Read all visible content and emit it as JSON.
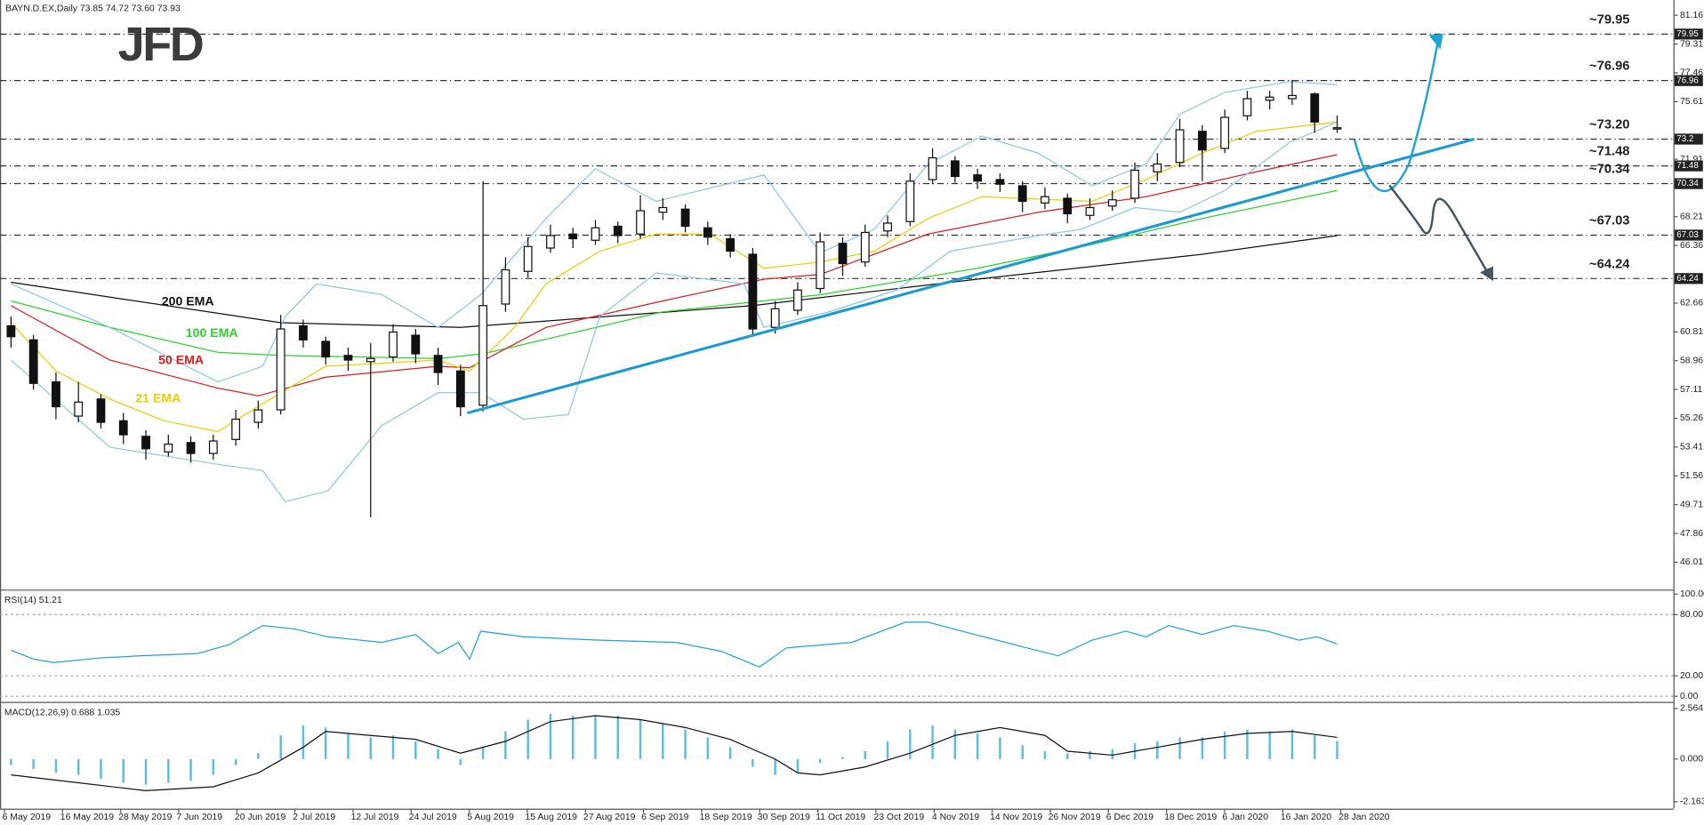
{
  "chart_data": [
    {
      "type": "candlestick",
      "title": "BAYN.D.EX,Daily  73.85 74.72 73.60 73.93",
      "logo": "JFD",
      "xlim": [
        -0.49,
        73.96
      ],
      "ylim": [
        44.25,
        82.14
      ],
      "yticks": [
        81.16,
        79.31,
        77.46,
        75.61,
        71.91,
        68.21,
        66.36,
        62.66,
        60.81,
        58.96,
        57.11,
        55.26,
        53.41,
        51.56,
        49.71,
        47.86,
        46.01
      ],
      "xticks": [
        {
          "value": -0.29,
          "label": "6 May 2019"
        },
        {
          "value": 2.29,
          "label": "16 May 2019"
        },
        {
          "value": 4.88,
          "label": "28 May 2019"
        },
        {
          "value": 7.46,
          "label": "7 Jun 2019"
        },
        {
          "value": 10.05,
          "label": "20 Jun 2019"
        },
        {
          "value": 12.63,
          "label": "2 Jul 2019"
        },
        {
          "value": 15.22,
          "label": "12 Jul 2019"
        },
        {
          "value": 17.8,
          "label": "24 Jul 2019"
        },
        {
          "value": 20.39,
          "label": "5 Aug 2019"
        },
        {
          "value": 22.97,
          "label": "15 Aug 2019"
        },
        {
          "value": 25.56,
          "label": "27 Aug 2019"
        },
        {
          "value": 28.14,
          "label": "6 Sep 2019"
        },
        {
          "value": 30.73,
          "label": "18 Sep 2019"
        },
        {
          "value": 33.31,
          "label": "30 Sep 2019"
        },
        {
          "value": 35.9,
          "label": "11 Oct 2019"
        },
        {
          "value": 38.48,
          "label": "23 Oct 2019"
        },
        {
          "value": 41.07,
          "label": "4 Nov 2019"
        },
        {
          "value": 43.65,
          "label": "14 Nov 2019"
        },
        {
          "value": 46.24,
          "label": "26 Nov 2019"
        },
        {
          "value": 48.82,
          "label": "6 Dec 2019"
        },
        {
          "value": 51.41,
          "label": "18 Dec 2019"
        },
        {
          "value": 53.99,
          "label": "6 Jan 2020"
        },
        {
          "value": 56.58,
          "label": "16 Jan 2020"
        },
        {
          "value": 59.16,
          "label": "28 Jan 2020"
        }
      ],
      "ohlc": [
        [
          61.2,
          61.8,
          59.8,
          60.5
        ],
        [
          60.3,
          60.6,
          57.1,
          57.5
        ],
        [
          57.6,
          58.2,
          55.2,
          56.0
        ],
        [
          55.4,
          57.6,
          55.0,
          56.3
        ],
        [
          56.5,
          56.8,
          54.6,
          55.0
        ],
        [
          55.1,
          55.6,
          53.6,
          54.2
        ],
        [
          54.1,
          54.5,
          52.6,
          53.3
        ],
        [
          53.1,
          54.2,
          52.8,
          53.6
        ],
        [
          53.7,
          54.1,
          52.4,
          53.0
        ],
        [
          53.0,
          54.2,
          52.6,
          53.8
        ],
        [
          53.9,
          55.8,
          53.5,
          55.2
        ],
        [
          55.0,
          56.4,
          54.6,
          55.8
        ],
        [
          55.8,
          61.9,
          55.5,
          61.0
        ],
        [
          61.2,
          61.6,
          59.8,
          60.3
        ],
        [
          60.2,
          60.5,
          58.7,
          59.2
        ],
        [
          59.3,
          59.8,
          58.3,
          59.0
        ],
        [
          58.9,
          60.1,
          48.9,
          59.1
        ],
        [
          59.2,
          61.3,
          58.9,
          60.8
        ],
        [
          60.6,
          61.0,
          58.8,
          59.4
        ],
        [
          59.3,
          59.8,
          57.4,
          58.2
        ],
        [
          58.3,
          58.7,
          55.4,
          56.0
        ],
        [
          56.1,
          70.5,
          55.7,
          62.5
        ],
        [
          62.6,
          65.6,
          62.1,
          64.8
        ],
        [
          64.7,
          66.9,
          64.3,
          66.3
        ],
        [
          66.2,
          67.7,
          65.9,
          67.0
        ],
        [
          67.1,
          67.5,
          66.2,
          66.8
        ],
        [
          66.7,
          68.0,
          66.4,
          67.5
        ],
        [
          67.6,
          67.9,
          66.5,
          67.0
        ],
        [
          67.1,
          69.6,
          66.8,
          68.6
        ],
        [
          68.5,
          69.4,
          68.0,
          68.8
        ],
        [
          68.7,
          69.0,
          67.2,
          67.6
        ],
        [
          67.5,
          67.9,
          66.4,
          66.9
        ],
        [
          66.8,
          67.1,
          65.6,
          66.0
        ],
        [
          65.8,
          66.2,
          60.6,
          61.0
        ],
        [
          61.1,
          62.8,
          60.7,
          62.3
        ],
        [
          62.2,
          64.0,
          61.9,
          63.5
        ],
        [
          63.6,
          67.2,
          63.3,
          66.6
        ],
        [
          66.5,
          66.9,
          64.4,
          65.2
        ],
        [
          65.3,
          67.7,
          65.0,
          67.2
        ],
        [
          67.3,
          68.3,
          66.9,
          67.8
        ],
        [
          67.9,
          71.0,
          67.6,
          70.5
        ],
        [
          70.6,
          72.6,
          70.3,
          72.0
        ],
        [
          71.8,
          72.1,
          70.4,
          70.8
        ],
        [
          70.9,
          71.3,
          70.0,
          70.5
        ],
        [
          70.6,
          71.0,
          69.8,
          70.3
        ],
        [
          70.2,
          70.5,
          68.5,
          69.2
        ],
        [
          69.1,
          70.1,
          68.7,
          69.5
        ],
        [
          69.4,
          69.7,
          67.8,
          68.4
        ],
        [
          68.3,
          69.4,
          68.0,
          68.8
        ],
        [
          68.9,
          69.9,
          68.6,
          69.3
        ],
        [
          69.4,
          71.7,
          69.1,
          71.2
        ],
        [
          71.1,
          72.3,
          70.5,
          71.6
        ],
        [
          71.7,
          74.5,
          71.4,
          73.8
        ],
        [
          73.7,
          74.1,
          70.5,
          72.5
        ],
        [
          72.6,
          75.1,
          72.3,
          74.6
        ],
        [
          74.7,
          76.3,
          74.4,
          75.8
        ],
        [
          75.7,
          76.3,
          75.1,
          75.9
        ],
        [
          75.8,
          77.0,
          75.4,
          76.0
        ],
        [
          76.1,
          76.2,
          73.6,
          74.3
        ],
        [
          73.85,
          74.72,
          73.6,
          73.93
        ]
      ],
      "series": [
        {
          "name": "200 EMA",
          "color": "#111111",
          "x": [
            0,
            12,
            20,
            33,
            43,
            53,
            59
          ],
          "values": [
            64.0,
            61.4,
            61.1,
            62.5,
            64.2,
            65.8,
            67.0
          ]
        },
        {
          "name": "100 EMA",
          "color": "#2ed12e",
          "x": [
            0,
            4.4,
            9.2,
            12,
            19,
            21,
            29,
            36,
            43,
            48,
            53,
            59
          ],
          "values": [
            62.8,
            61.1,
            59.5,
            59.3,
            59.1,
            59.4,
            62.1,
            63.2,
            64.9,
            66.4,
            68.1,
            69.9
          ]
        },
        {
          "name": "50 EMA",
          "color": "#e01b1b",
          "x": [
            0,
            4.4,
            9.2,
            11,
            14,
            19,
            20.4,
            23.8,
            29,
            33.5,
            36,
            40.8,
            45.7,
            50.5,
            55.4,
            59
          ],
          "values": [
            62.5,
            59.0,
            57.2,
            56.7,
            57.9,
            58.6,
            58.5,
            61.1,
            62.8,
            64.2,
            64.5,
            67.1,
            68.5,
            69.5,
            71.1,
            72.2
          ]
        },
        {
          "name": "21 EMA",
          "color": "#e8cf00",
          "x": [
            0,
            2,
            4.4,
            6.8,
            9.2,
            11.2,
            14,
            19,
            20.4,
            22.4,
            23.8,
            26.2,
            28.7,
            31.1,
            33.5,
            36,
            38.4,
            40.8,
            43.2,
            48.1,
            50.5,
            53,
            55.4,
            59
          ],
          "values": [
            61.4,
            58.3,
            56.5,
            55.1,
            54.4,
            56.2,
            58.6,
            59.0,
            58.3,
            61.1,
            63.9,
            66.0,
            67.1,
            67.1,
            64.9,
            65.3,
            66.0,
            68.1,
            69.5,
            69.2,
            70.6,
            72.3,
            73.7,
            74.3
          ]
        },
        {
          "color": "#8cc6ea",
          "x": [
            0,
            4.4,
            9.2,
            11.2,
            12.2,
            13.6,
            16.5,
            19,
            20.9,
            23.8,
            26,
            28.7,
            33.5,
            36,
            38.4,
            40.8,
            43.2,
            45.7,
            48.1,
            50.5,
            52,
            54,
            56.9,
            59
          ],
          "values": [
            63.9,
            61.1,
            57.6,
            58.6,
            61.8,
            63.9,
            63.2,
            61.1,
            63.2,
            68.1,
            71.3,
            69.2,
            70.9,
            65.9,
            67.4,
            71.6,
            73.4,
            72.3,
            70.2,
            71.6,
            74.8,
            76.2,
            76.9,
            76.7
          ]
        },
        {
          "color": "#8cc6ea",
          "x": [
            0,
            4.4,
            9.2,
            11.2,
            12.2,
            14.1,
            16.5,
            19,
            20.9,
            22.8,
            24.8,
            26.2,
            28.7,
            32.6,
            33.5,
            36.4,
            39.4,
            41.8,
            45.7,
            47.6,
            50,
            52,
            54,
            56.9,
            59
          ],
          "values": [
            59.0,
            53.4,
            52.3,
            51.9,
            49.9,
            50.6,
            54.8,
            56.9,
            56.9,
            55.2,
            55.5,
            61.8,
            64.6,
            63.9,
            61.1,
            62.1,
            63.5,
            66.0,
            67.0,
            67.4,
            68.8,
            68.5,
            69.9,
            73.0,
            74.3
          ]
        }
      ],
      "trendline": {
        "color": "#1b9ad1",
        "x": [
          20.3,
          65.1
        ],
        "values": [
          55.6,
          73.2
        ]
      },
      "levels": [
        {
          "value": 79.95,
          "label": "~79.95",
          "color": "#1fa3d6"
        },
        {
          "value": 76.96,
          "label": "~76.96",
          "color": "#1fa3d6"
        },
        {
          "value": 73.2,
          "label": "~73.20",
          "color": "#1fa3d6"
        },
        {
          "value": 71.48,
          "label": "~71.48",
          "color": "#1fa3d6"
        },
        {
          "value": 70.34,
          "label": "~70.34",
          "color": "#444444"
        },
        {
          "value": 67.03,
          "label": "~67.03",
          "color": "#444444"
        },
        {
          "value": 64.24,
          "label": "~64.24",
          "color": "#444444"
        }
      ]
    },
    {
      "type": "line",
      "title": "RSI(14) 51.21",
      "xlim": [
        -0.49,
        73.96
      ],
      "ylim": [
        -5.5,
        104.4
      ],
      "yticks": [
        {
          "value": 100,
          "label": "100.00"
        },
        {
          "value": 80,
          "label": "80.00"
        },
        {
          "value": 20,
          "label": "20.00"
        },
        {
          "value": 0,
          "label": "0.00"
        }
      ],
      "series": [
        {
          "color": "#1fa3d6",
          "x": [
            0,
            1,
            1.9,
            3.9,
            5.8,
            8.3,
            9.7,
            11.2,
            12.6,
            14.1,
            16.5,
            18,
            19,
            19.9,
            20.4,
            20.9,
            22.8,
            26.2,
            29.6,
            31.6,
            33.3,
            34.5,
            37.4,
            39.8,
            40.8,
            42.3,
            45.2,
            46.6,
            48.1,
            49.6,
            50.5,
            51.5,
            53,
            54.4,
            55.9,
            57.3,
            58.1,
            59
          ],
          "values": [
            45.1,
            36.3,
            33,
            37.4,
            39.6,
            41.8,
            50.5,
            69.2,
            65.9,
            58.2,
            52.7,
            60.4,
            41.8,
            52.7,
            36.3,
            63.7,
            58.2,
            54.9,
            52.7,
            44,
            28.6,
            47.3,
            52.7,
            72.5,
            72.5,
            63.7,
            47.3,
            39.6,
            54.9,
            63.7,
            58.2,
            69.2,
            60.4,
            69.2,
            63.7,
            54.9,
            58.2,
            51.21
          ]
        }
      ]
    },
    {
      "type": "macd",
      "title": "MACD(12,26,9) 0.688 1.035",
      "xlim": [
        -0.49,
        73.96
      ],
      "ylim": [
        -2.51,
        2.9
      ],
      "yticks": [
        2.564,
        {
          "value": 0,
          "label": "0.000"
        },
        -2.163
      ],
      "histogram": {
        "color": "#5bbde3",
        "values": [
          -0.3,
          -0.5,
          -0.7,
          -0.8,
          -1.0,
          -1.2,
          -1.3,
          -1.2,
          -1.1,
          -0.8,
          -0.3,
          0.3,
          1.2,
          1.7,
          1.6,
          1.3,
          1.1,
          1.2,
          0.9,
          0.5,
          -0.3,
          0.6,
          1.4,
          2.0,
          2.3,
          2.2,
          2.2,
          2.2,
          2.0,
          1.8,
          1.5,
          1.1,
          0.6,
          -0.4,
          -0.8,
          -0.7,
          -0.2,
          0.1,
          0.4,
          0.9,
          1.5,
          1.7,
          1.5,
          1.3,
          1.1,
          0.7,
          0.4,
          0.3,
          0.4,
          0.5,
          0.8,
          0.9,
          1.1,
          1.1,
          1.4,
          1.5,
          1.4,
          1.5,
          1.2,
          0.9
        ]
      },
      "signal": {
        "color": "#111111",
        "x": [
          0,
          3,
          6,
          9,
          11,
          13,
          14,
          16,
          18,
          20,
          22,
          24,
          26,
          28,
          30,
          32,
          34,
          35,
          36,
          38,
          40,
          42,
          44,
          46,
          47,
          49,
          51,
          53,
          55,
          57,
          59
        ],
        "values": [
          -0.8,
          -1.2,
          -1.6,
          -1.4,
          -0.7,
          0.6,
          1.4,
          1.2,
          1.0,
          0.3,
          0.9,
          1.9,
          2.2,
          2.0,
          1.6,
          1.0,
          0.0,
          -0.7,
          -0.8,
          -0.4,
          0.3,
          1.2,
          1.6,
          1.2,
          0.4,
          0.2,
          0.6,
          1.0,
          1.3,
          1.4,
          1.1
        ]
      }
    }
  ]
}
